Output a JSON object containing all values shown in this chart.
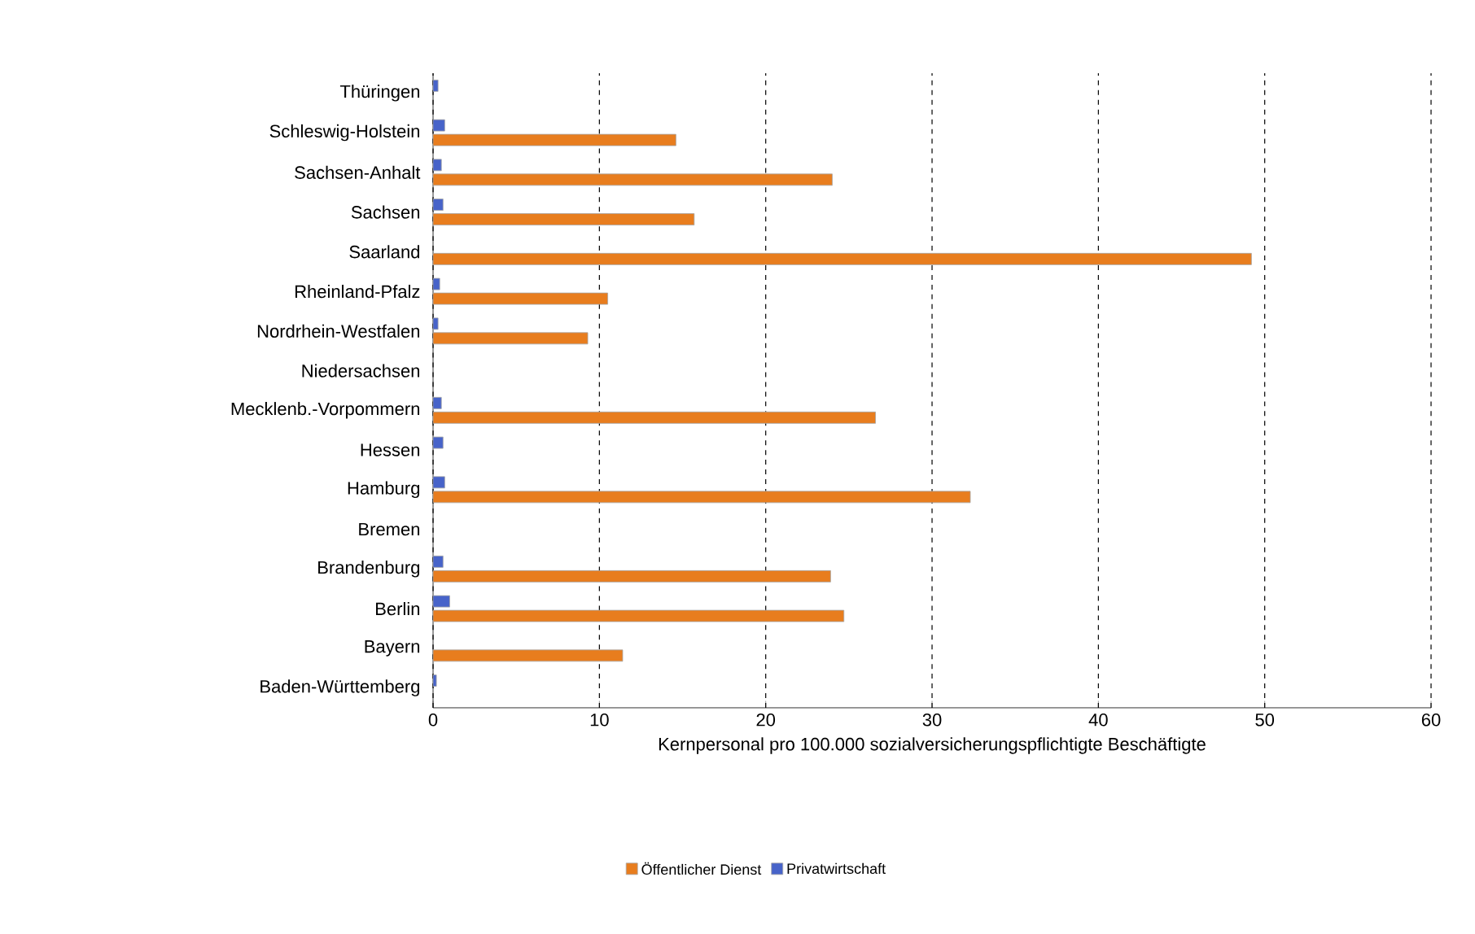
{
  "chart_data": {
    "type": "bar",
    "orientation": "horizontal",
    "xlabel": "Kernpersonal pro 100.000 sozialversicherungspflichtigte Beschäftigte",
    "categories": [
      "Thüringen",
      "Schleswig-Holstein",
      "Sachsen-Anhalt",
      "Sachsen",
      "Saarland",
      "Rheinland-Pfalz",
      "Nordrhein-Westfalen",
      "Niedersachsen",
      "Mecklenb.-Vorpommern",
      "Hessen",
      "Hamburg",
      "Bremen",
      "Brandenburg",
      "Berlin",
      "Bayern",
      "Baden-Württemberg"
    ],
    "series": [
      {
        "name": "Öffentlicher Dienst",
        "color": "#e87d1e",
        "values": [
          null,
          14.6,
          24.0,
          15.7,
          49.2,
          10.5,
          9.3,
          null,
          26.6,
          null,
          32.3,
          null,
          23.9,
          24.7,
          11.4,
          null
        ]
      },
      {
        "name": "Privatwirtschaft",
        "color": "#4763c9",
        "values": [
          0.3,
          0.7,
          0.5,
          0.6,
          null,
          0.4,
          0.3,
          null,
          0.5,
          0.6,
          0.7,
          null,
          0.6,
          1.0,
          null,
          0.2
        ]
      }
    ],
    "xlim": [
      0,
      60
    ],
    "xticks": [
      0,
      10,
      20,
      30,
      40,
      50,
      60
    ],
    "grid": "x",
    "legend": "bottom"
  }
}
